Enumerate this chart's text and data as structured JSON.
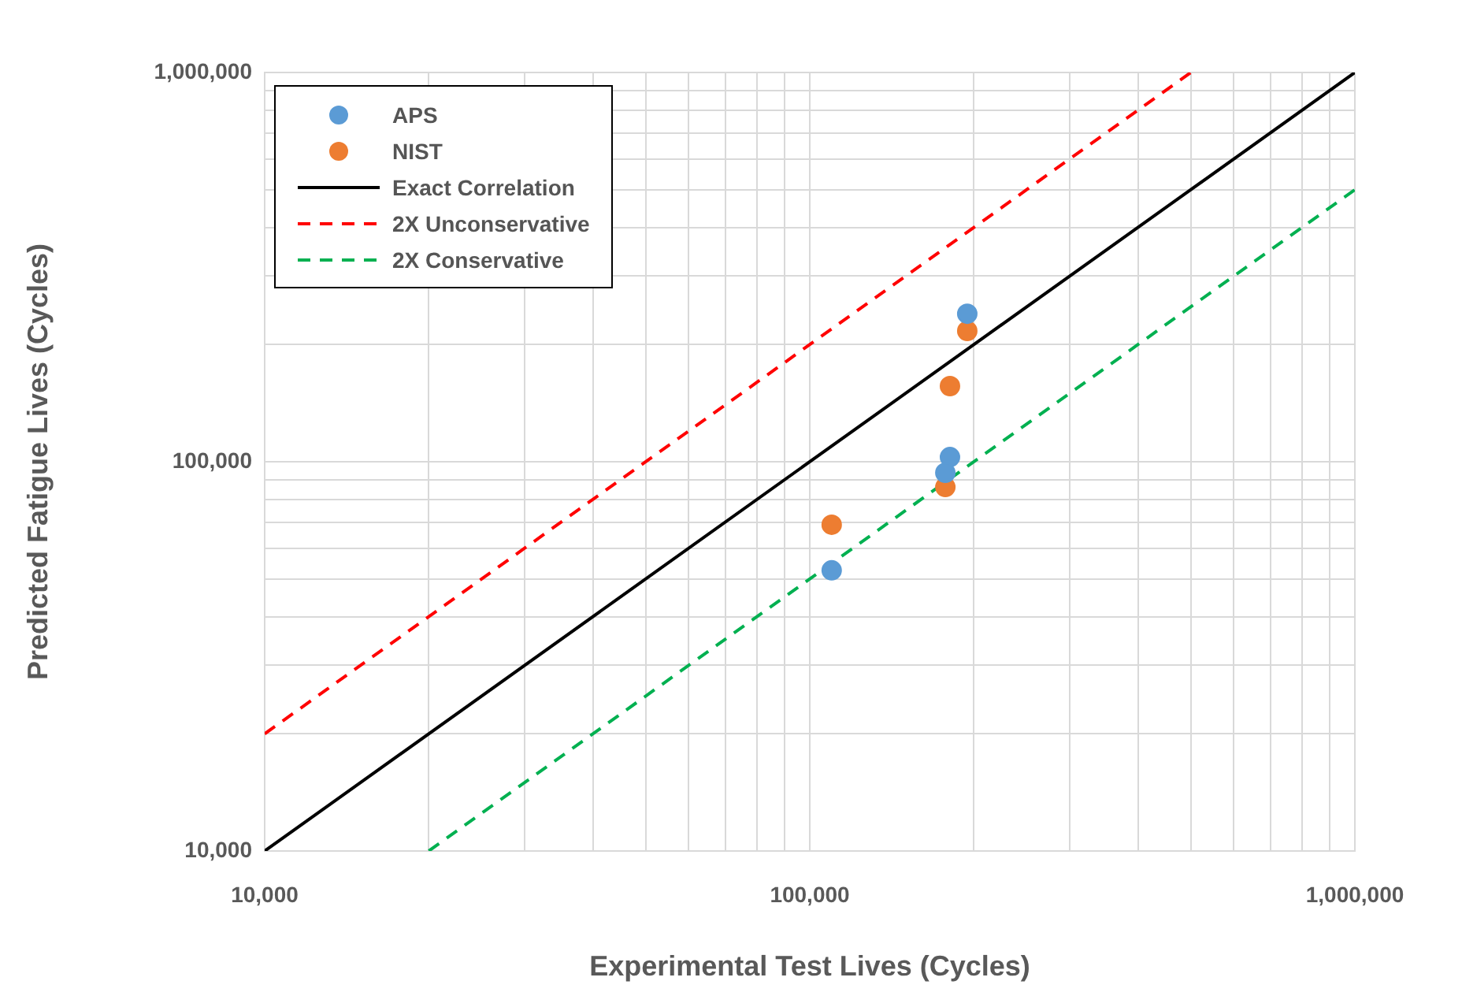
{
  "chart_data": {
    "type": "scatter",
    "xlabel": "Experimental Test Lives (Cycles)",
    "ylabel": "Predicted Fatigue Lives (Cycles)",
    "log": "xy",
    "grid": true,
    "legend": "top left",
    "xlim": [
      10000,
      1000000
    ],
    "ylim": [
      10000,
      1000000
    ],
    "xticks": [
      {
        "value": 10000,
        "label": "10,000"
      },
      {
        "value": 20000,
        "label": null
      },
      {
        "value": 30000,
        "label": null
      },
      {
        "value": 40000,
        "label": null
      },
      {
        "value": 50000,
        "label": null
      },
      {
        "value": 60000,
        "label": null
      },
      {
        "value": 70000,
        "label": null
      },
      {
        "value": 80000,
        "label": null
      },
      {
        "value": 90000,
        "label": null
      },
      {
        "value": 100000,
        "label": "100,000"
      },
      {
        "value": 200000,
        "label": null
      },
      {
        "value": 300000,
        "label": null
      },
      {
        "value": 400000,
        "label": null
      },
      {
        "value": 500000,
        "label": null
      },
      {
        "value": 600000,
        "label": null
      },
      {
        "value": 700000,
        "label": null
      },
      {
        "value": 800000,
        "label": null
      },
      {
        "value": 900000,
        "label": null
      },
      {
        "value": 1000000,
        "label": "1,000,000"
      }
    ],
    "yticks": [
      {
        "value": 10000,
        "label": "10,000"
      },
      {
        "value": 20000,
        "label": null
      },
      {
        "value": 30000,
        "label": null
      },
      {
        "value": 40000,
        "label": null
      },
      {
        "value": 50000,
        "label": null
      },
      {
        "value": 60000,
        "label": null
      },
      {
        "value": 70000,
        "label": null
      },
      {
        "value": 80000,
        "label": null
      },
      {
        "value": 90000,
        "label": null
      },
      {
        "value": 100000,
        "label": "100,000"
      },
      {
        "value": 200000,
        "label": null
      },
      {
        "value": 300000,
        "label": null
      },
      {
        "value": 400000,
        "label": null
      },
      {
        "value": 500000,
        "label": null
      },
      {
        "value": 600000,
        "label": null
      },
      {
        "value": 700000,
        "label": null
      },
      {
        "value": 800000,
        "label": null
      },
      {
        "value": 900000,
        "label": null
      },
      {
        "value": 1000000,
        "label": "1,000,000"
      }
    ],
    "series": [
      {
        "name": "APS",
        "marker": "circle",
        "color": "#5b9bd5",
        "x": [
          194500,
          180800,
          177300,
          109700
        ],
        "values": [
          240000,
          102800,
          93700,
          52600
        ]
      },
      {
        "name": "NIST",
        "marker": "circle",
        "color": "#ed7d31",
        "x": [
          194500,
          180800,
          177300,
          109700
        ],
        "values": [
          216800,
          156400,
          86100,
          68900
        ]
      },
      {
        "name": "Exact Correlation",
        "type": "line",
        "marker": "none",
        "line_style": "solid",
        "color": "#000000",
        "x": [
          10000,
          1000000
        ],
        "values": [
          10000,
          1000000
        ]
      },
      {
        "name": "2X Unconservative",
        "type": "line",
        "marker": "none",
        "line_style": "dashed",
        "color": "#ff0000",
        "x": [
          10000,
          500000
        ],
        "values": [
          20000,
          1000000
        ]
      },
      {
        "name": "2X Conservative",
        "type": "line",
        "marker": "none",
        "line_style": "dashed",
        "color": "#00b050",
        "x": [
          20000,
          1000000
        ],
        "values": [
          10000,
          500000
        ]
      }
    ]
  }
}
